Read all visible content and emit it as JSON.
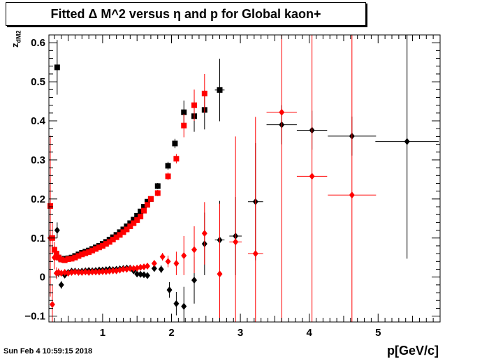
{
  "title": "Fitted Δ M^2 versus η and p for Global kaon+",
  "timestamp": "Sun Feb  4 10:59:15 2018",
  "chart_data": {
    "type": "scatter",
    "title": "Fitted Δ M^2 versus η and p for Global kaon+",
    "xlabel": "p[GeV/c]",
    "ylabel_main": "z",
    "ylabel_sub": "dM2",
    "xlim": [
      0.22,
      5.9
    ],
    "ylim": [
      -0.115,
      0.62
    ],
    "x_ticks": [
      1,
      2,
      3,
      4,
      5
    ],
    "y_ticks": [
      -0.1,
      0,
      0.1,
      0.2,
      0.3,
      0.4,
      0.5,
      0.6
    ],
    "y_tick_labels": [
      "−0.1",
      "0",
      "0.1",
      "0.2",
      "0.3",
      "0.4",
      "0.5",
      "0.6"
    ],
    "grid": false,
    "legend": "none",
    "colors": {
      "black_series": "#000000",
      "red_series": "#ff0000"
    },
    "series": [
      {
        "marker": "square",
        "color": "#000000",
        "points": [
          [
            0.34,
            0.537,
            0,
            0.07
          ],
          [
            0.36,
            0.05,
            0,
            0.01
          ],
          [
            0.4,
            0.045,
            0,
            0.008
          ],
          [
            0.45,
            0.047,
            0,
            0.006
          ],
          [
            0.5,
            0.048,
            0,
            0.006
          ],
          [
            0.55,
            0.05,
            0,
            0.006
          ],
          [
            0.6,
            0.054,
            0,
            0.006
          ],
          [
            0.65,
            0.058,
            0,
            0.006
          ],
          [
            0.7,
            0.062,
            0,
            0.006
          ],
          [
            0.75,
            0.065,
            0,
            0.006
          ],
          [
            0.8,
            0.068,
            0,
            0.006
          ],
          [
            0.85,
            0.072,
            0,
            0.006
          ],
          [
            0.9,
            0.076,
            0,
            0.006
          ],
          [
            0.95,
            0.08,
            0,
            0.006
          ],
          [
            1.0,
            0.085,
            0,
            0.006
          ],
          [
            1.05,
            0.09,
            0,
            0.006
          ],
          [
            1.1,
            0.096,
            0,
            0.006
          ],
          [
            1.15,
            0.102,
            0,
            0.006
          ],
          [
            1.2,
            0.108,
            0,
            0.006
          ],
          [
            1.25,
            0.115,
            0,
            0.006
          ],
          [
            1.3,
            0.122,
            0,
            0.006
          ],
          [
            1.35,
            0.13,
            0,
            0.006
          ],
          [
            1.4,
            0.138,
            0,
            0.006
          ],
          [
            1.45,
            0.147,
            0,
            0.006
          ],
          [
            1.5,
            0.157,
            0,
            0.006
          ],
          [
            1.55,
            0.168,
            0,
            0.006
          ],
          [
            1.6,
            0.18,
            0,
            0.006
          ],
          [
            1.65,
            0.193,
            0,
            0.006
          ],
          [
            1.7,
            0.2,
            0,
            0.006
          ],
          [
            1.8,
            0.233,
            0,
            0.008
          ],
          [
            1.95,
            0.285,
            0,
            0.01
          ],
          [
            2.05,
            0.342,
            0,
            0.012
          ],
          [
            2.18,
            0.422,
            0,
            0.03
          ],
          [
            2.33,
            0.412,
            0,
            0.04
          ],
          [
            2.48,
            0.428,
            0,
            0.05
          ],
          [
            2.7,
            0.479,
            0.07,
            0.08
          ]
        ]
      },
      {
        "marker": "square",
        "color": "#ff0000",
        "points": [
          [
            0.24,
            0.182,
            0,
            0.18
          ],
          [
            0.27,
            0.1,
            0,
            0.04
          ],
          [
            0.3,
            0.07,
            0,
            0.02
          ],
          [
            0.33,
            0.06,
            0,
            0.015
          ],
          [
            0.36,
            0.05,
            0,
            0.01
          ],
          [
            0.4,
            0.045,
            0,
            0.008
          ],
          [
            0.45,
            0.043,
            0,
            0.006
          ],
          [
            0.5,
            0.046,
            0,
            0.006
          ],
          [
            0.55,
            0.047,
            0,
            0.006
          ],
          [
            0.6,
            0.05,
            0,
            0.006
          ],
          [
            0.65,
            0.054,
            0,
            0.006
          ],
          [
            0.7,
            0.058,
            0,
            0.006
          ],
          [
            0.75,
            0.061,
            0,
            0.006
          ],
          [
            0.8,
            0.064,
            0,
            0.006
          ],
          [
            0.85,
            0.068,
            0,
            0.006
          ],
          [
            0.9,
            0.072,
            0,
            0.006
          ],
          [
            0.95,
            0.076,
            0,
            0.006
          ],
          [
            1.0,
            0.08,
            0,
            0.006
          ],
          [
            1.05,
            0.085,
            0,
            0.006
          ],
          [
            1.1,
            0.09,
            0,
            0.006
          ],
          [
            1.15,
            0.096,
            0,
            0.006
          ],
          [
            1.2,
            0.102,
            0,
            0.006
          ],
          [
            1.25,
            0.108,
            0,
            0.006
          ],
          [
            1.3,
            0.115,
            0,
            0.006
          ],
          [
            1.35,
            0.122,
            0,
            0.006
          ],
          [
            1.4,
            0.13,
            0,
            0.006
          ],
          [
            1.45,
            0.138,
            0,
            0.006
          ],
          [
            1.5,
            0.146,
            0,
            0.006
          ],
          [
            1.55,
            0.155,
            0,
            0.006
          ],
          [
            1.6,
            0.17,
            0,
            0.006
          ],
          [
            1.65,
            0.185,
            0,
            0.006
          ],
          [
            1.7,
            0.2,
            0,
            0.006
          ],
          [
            1.8,
            0.215,
            0,
            0.008
          ],
          [
            1.95,
            0.258,
            0,
            0.01
          ],
          [
            2.07,
            0.303,
            0,
            0.012
          ],
          [
            2.18,
            0.388,
            0,
            0.03
          ],
          [
            2.33,
            0.44,
            0,
            0.04
          ],
          [
            2.48,
            0.47,
            0,
            0.05
          ]
        ]
      },
      {
        "marker": "diamond",
        "color": "#000000",
        "points": [
          [
            0.34,
            0.12,
            0,
            0.02
          ],
          [
            0.36,
            0.01,
            0,
            0.01
          ],
          [
            0.4,
            -0.02,
            0,
            0.01
          ],
          [
            0.45,
            0.005,
            0,
            0.006
          ],
          [
            0.5,
            0.012,
            0,
            0.006
          ],
          [
            0.55,
            0.015,
            0,
            0.006
          ],
          [
            0.6,
            0.015,
            0,
            0.006
          ],
          [
            0.65,
            0.014,
            0,
            0.006
          ],
          [
            0.7,
            0.015,
            0,
            0.006
          ],
          [
            0.75,
            0.016,
            0,
            0.006
          ],
          [
            0.8,
            0.017,
            0,
            0.006
          ],
          [
            0.85,
            0.016,
            0,
            0.006
          ],
          [
            0.9,
            0.017,
            0,
            0.006
          ],
          [
            0.95,
            0.018,
            0,
            0.006
          ],
          [
            1.0,
            0.018,
            0,
            0.006
          ],
          [
            1.05,
            0.019,
            0,
            0.006
          ],
          [
            1.1,
            0.02,
            0,
            0.006
          ],
          [
            1.15,
            0.019,
            0,
            0.006
          ],
          [
            1.2,
            0.02,
            0,
            0.006
          ],
          [
            1.25,
            0.021,
            0,
            0.006
          ],
          [
            1.3,
            0.022,
            0,
            0.006
          ],
          [
            1.35,
            0.023,
            0,
            0.006
          ],
          [
            1.4,
            0.023,
            0,
            0.006
          ],
          [
            1.45,
            0.016,
            0,
            0.006
          ],
          [
            1.5,
            0.008,
            0,
            0.006
          ],
          [
            1.55,
            0.007,
            0,
            0.006
          ],
          [
            1.6,
            0.006,
            0,
            0.006
          ],
          [
            1.65,
            0.004,
            0,
            0.006
          ],
          [
            1.75,
            0.022,
            0,
            0.008
          ],
          [
            1.85,
            0.02,
            0,
            0.01
          ],
          [
            1.97,
            -0.033,
            0,
            0.02
          ],
          [
            2.07,
            -0.068,
            0,
            0.03
          ],
          [
            2.18,
            -0.075,
            0,
            0.05
          ],
          [
            2.33,
            -0.008,
            0,
            0.06
          ],
          [
            2.48,
            0.085,
            0,
            0.08
          ],
          [
            2.7,
            0.095,
            0.07,
            0.1
          ],
          [
            2.93,
            0.105,
            0.09,
            0.1
          ],
          [
            3.22,
            0.193,
            0.11,
            0.15
          ],
          [
            3.6,
            0.39,
            0.22,
            0.05
          ],
          [
            4.04,
            0.376,
            0.22,
            0.05
          ],
          [
            4.62,
            0.361,
            0.35,
            0.05
          ],
          [
            5.42,
            0.347,
            0.46,
            0.3
          ]
        ]
      },
      {
        "marker": "diamond",
        "color": "#ff0000",
        "points": [
          [
            0.24,
            0.1,
            0,
            0.15
          ],
          [
            0.27,
            -0.07,
            0,
            0.05
          ],
          [
            0.3,
            0.05,
            0,
            0.03
          ],
          [
            0.33,
            0.01,
            0,
            0.015
          ],
          [
            0.36,
            0.012,
            0,
            0.01
          ],
          [
            0.4,
            0.01,
            0,
            0.008
          ],
          [
            0.45,
            0.012,
            0,
            0.006
          ],
          [
            0.5,
            0.01,
            0,
            0.006
          ],
          [
            0.55,
            0.012,
            0,
            0.006
          ],
          [
            0.6,
            0.013,
            0,
            0.006
          ],
          [
            0.65,
            0.012,
            0,
            0.006
          ],
          [
            0.7,
            0.012,
            0,
            0.006
          ],
          [
            0.75,
            0.013,
            0,
            0.006
          ],
          [
            0.8,
            0.012,
            0,
            0.006
          ],
          [
            0.85,
            0.013,
            0,
            0.006
          ],
          [
            0.9,
            0.013,
            0,
            0.006
          ],
          [
            0.95,
            0.013,
            0,
            0.006
          ],
          [
            1.0,
            0.014,
            0,
            0.006
          ],
          [
            1.05,
            0.014,
            0,
            0.006
          ],
          [
            1.1,
            0.015,
            0,
            0.006
          ],
          [
            1.15,
            0.016,
            0,
            0.006
          ],
          [
            1.2,
            0.016,
            0,
            0.006
          ],
          [
            1.25,
            0.018,
            0,
            0.006
          ],
          [
            1.3,
            0.02,
            0,
            0.006
          ],
          [
            1.35,
            0.02,
            0,
            0.006
          ],
          [
            1.4,
            0.022,
            0,
            0.006
          ],
          [
            1.45,
            0.022,
            0,
            0.006
          ],
          [
            1.5,
            0.023,
            0,
            0.006
          ],
          [
            1.55,
            0.025,
            0,
            0.006
          ],
          [
            1.6,
            0.026,
            0,
            0.006
          ],
          [
            1.65,
            0.028,
            0,
            0.006
          ],
          [
            1.75,
            0.035,
            0,
            0.008
          ],
          [
            1.87,
            0.052,
            0,
            0.01
          ],
          [
            1.95,
            0.04,
            0,
            0.015
          ],
          [
            2.07,
            0.035,
            0,
            0.03
          ],
          [
            2.18,
            0.055,
            0,
            0.05
          ],
          [
            2.33,
            0.07,
            0,
            0.06
          ],
          [
            2.48,
            0.112,
            0,
            0.08
          ],
          [
            2.7,
            0.008,
            0,
            0.18
          ],
          [
            2.93,
            0.09,
            0.09,
            0.27
          ],
          [
            3.22,
            0.06,
            0.11,
            0.35
          ],
          [
            3.6,
            0.422,
            0.22,
            0.56
          ],
          [
            4.04,
            0.258,
            0.22,
            0.5
          ],
          [
            4.62,
            0.21,
            0.35,
            0.5
          ]
        ]
      }
    ]
  }
}
